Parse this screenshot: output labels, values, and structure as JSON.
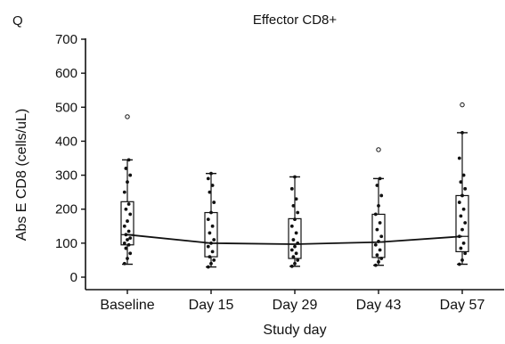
{
  "panel_label": "Q",
  "chart_data": {
    "type": "box",
    "title": "Effector CD8+",
    "xlabel": "Study day",
    "ylabel": "Abs E CD8 (cells/uL)",
    "ylim": [
      0,
      700
    ],
    "yticks": [
      0,
      100,
      200,
      300,
      400,
      500,
      600,
      700
    ],
    "grid": false,
    "categories": [
      "Baseline",
      "Day 15",
      "Day 29",
      "Day 43",
      "Day 57"
    ],
    "boxes": [
      {
        "whisker_low": 38,
        "q1": 95,
        "median": 125,
        "q3": 222,
        "whisker_high": 345,
        "outliers": [
          472
        ]
      },
      {
        "whisker_low": 30,
        "q1": 60,
        "median": 100,
        "q3": 190,
        "whisker_high": 305,
        "outliers": []
      },
      {
        "whisker_low": 32,
        "q1": 55,
        "median": 97,
        "q3": 172,
        "whisker_high": 295,
        "outliers": []
      },
      {
        "whisker_low": 35,
        "q1": 58,
        "median": 103,
        "q3": 185,
        "whisker_high": 290,
        "outliers": [
          375
        ]
      },
      {
        "whisker_low": 38,
        "q1": 75,
        "median": 120,
        "q3": 240,
        "whisker_high": 425,
        "outliers": [
          507
        ]
      }
    ],
    "mean_line": [
      125,
      100,
      97,
      103,
      120
    ],
    "points": [
      [
        40,
        55,
        70,
        85,
        95,
        100,
        110,
        115,
        125,
        135,
        150,
        165,
        185,
        200,
        215,
        250,
        280,
        300,
        320,
        345
      ],
      [
        30,
        40,
        50,
        60,
        75,
        90,
        100,
        110,
        130,
        150,
        170,
        190,
        220,
        250,
        270,
        290,
        305
      ],
      [
        32,
        40,
        50,
        60,
        70,
        80,
        90,
        100,
        110,
        130,
        150,
        170,
        190,
        210,
        230,
        260,
        295
      ],
      [
        35,
        45,
        55,
        65,
        80,
        95,
        105,
        120,
        140,
        160,
        185,
        210,
        240,
        270,
        290
      ],
      [
        38,
        50,
        70,
        85,
        100,
        120,
        140,
        160,
        180,
        200,
        220,
        240,
        260,
        280,
        300,
        350,
        425
      ]
    ]
  }
}
